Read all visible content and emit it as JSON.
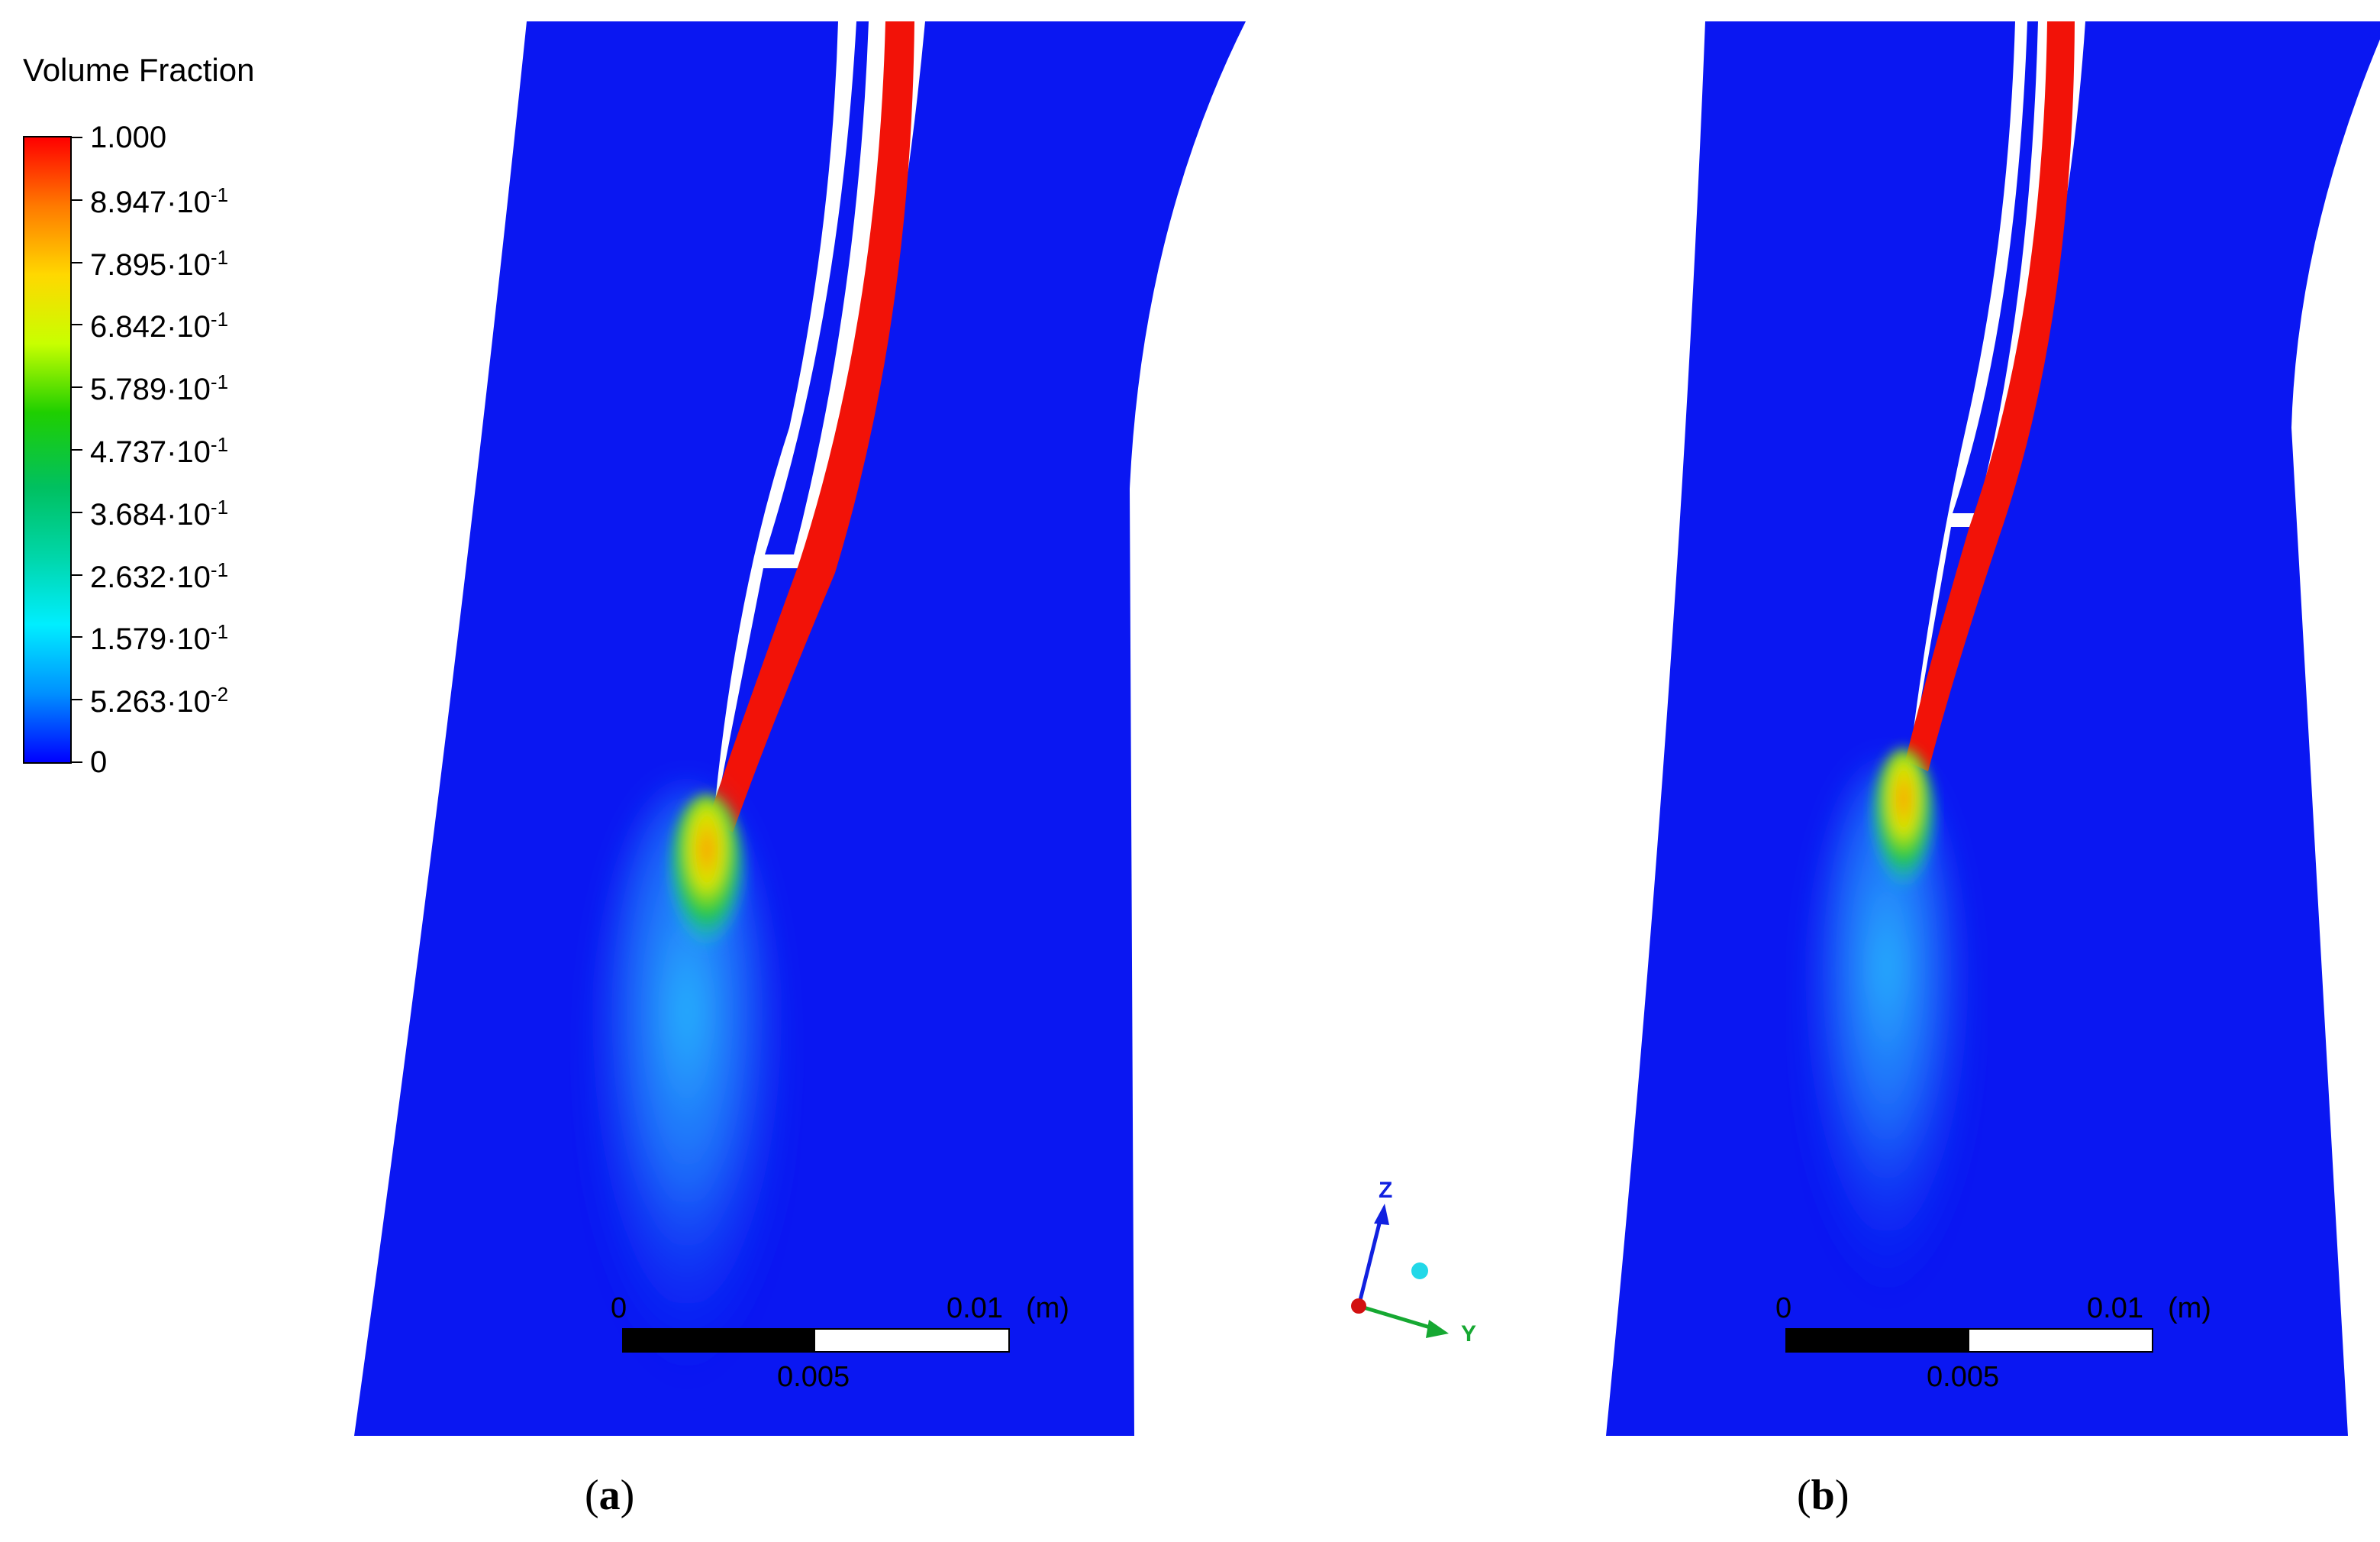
{
  "legend": {
    "title": "Volume Fraction",
    "ticks": [
      {
        "mantissa": "1.000",
        "exponent": ""
      },
      {
        "mantissa": "8.947",
        "exponent": "-1"
      },
      {
        "mantissa": "7.895",
        "exponent": "-1"
      },
      {
        "mantissa": "6.842",
        "exponent": "-1"
      },
      {
        "mantissa": "5.789",
        "exponent": "-1"
      },
      {
        "mantissa": "4.737",
        "exponent": "-1"
      },
      {
        "mantissa": "3.684",
        "exponent": "-1"
      },
      {
        "mantissa": "2.632",
        "exponent": "-1"
      },
      {
        "mantissa": "1.579",
        "exponent": "-1"
      },
      {
        "mantissa": "5.263",
        "exponent": "-2"
      },
      {
        "mantissa": "0",
        "exponent": ""
      }
    ],
    "colors": [
      "#ff0000",
      "#ff7a00",
      "#ffd800",
      "#c8ff00",
      "#1fcf00",
      "#00c060",
      "#00d6a8",
      "#00eeff",
      "#0090ff",
      "#0000ff"
    ]
  },
  "scale_bar": {
    "start": "0",
    "end": "0.01",
    "unit": "(m)",
    "mid": "0.005"
  },
  "axes": {
    "z": "Z",
    "y": "Y"
  },
  "panels": [
    {
      "label": "a",
      "open": "(",
      "close": ")"
    },
    {
      "label": "b",
      "open": "(",
      "close": ")"
    }
  ],
  "colors": {
    "domain": "#0a17f2",
    "jet": "#f21208",
    "background": "#ffffff"
  }
}
